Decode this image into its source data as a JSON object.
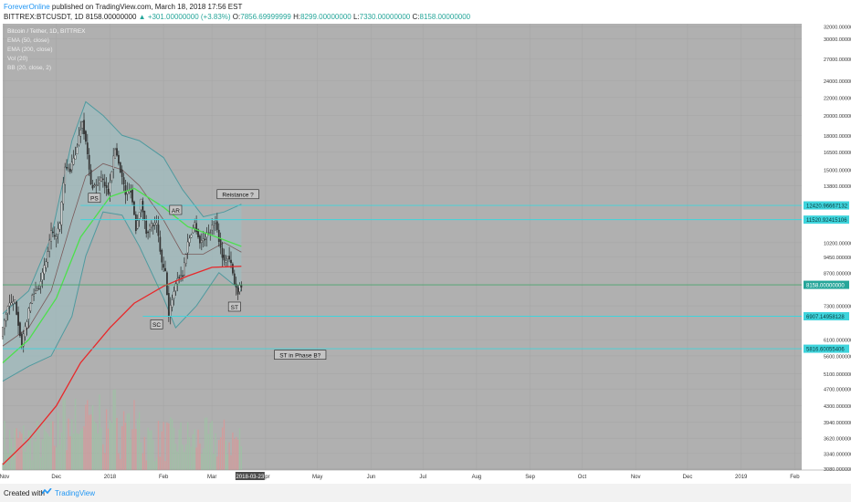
{
  "header": {
    "author": "ForeverOnline",
    "published": "published on TradingView.com, March 18, 2018 17:56 EST",
    "symbol": "BITTREX:BTCUSDT, 1D",
    "last": "8158.00000000",
    "change": "▲ +301.00000000 (+3.83%)",
    "o_label": "O:",
    "o_value": "7856.69999999",
    "h_label": "H:",
    "h_value": "8299.00000000",
    "l_label": "L:",
    "l_value": "7330.00000000",
    "c_label": "C:",
    "c_value": "8158.00000000"
  },
  "legend": {
    "title": "Bitcoin / Tether, 1D, BITTREX",
    "items": [
      "EMA (50, close)",
      "EMA (200, close)",
      "Vol (20)",
      "BB (20, close, 2)"
    ]
  },
  "footer": {
    "created": "Created with",
    "brand": "TradingView"
  },
  "colors": {
    "background": "#ffffff",
    "plot_bg": "#b0b0b0",
    "candle_up": "#f2f2f2",
    "candle_down": "#3a3a3a",
    "ema50": "#4ce04c",
    "ema200": "#e8282a",
    "bb_band": "#4f9a9f",
    "bb_fill": "#9cc0c3",
    "bb_mid": "#7a5a5a",
    "level_line": "#3fd4dc",
    "price_badge": "#3fd4dc",
    "last_badge": "#26a69a",
    "vol_up": "#9fc2a4",
    "vol_down": "#d89999",
    "author": "#2196f3"
  },
  "chart_data": {
    "type": "candlestick",
    "y_scale": "log",
    "ylim": [
      3060,
      32500
    ],
    "x_start": "2017-10-31",
    "x_end": "2019-02-05",
    "y_ticks": [
      {
        "value": 32000,
        "label": "32000.00000000"
      },
      {
        "value": 30000,
        "label": "30000.00000000"
      },
      {
        "value": 27000,
        "label": "27000.00000000"
      },
      {
        "value": 24000,
        "label": "24000.00000000"
      },
      {
        "value": 22000,
        "label": "22000.00000000"
      },
      {
        "value": 20000,
        "label": "20000.00000000"
      },
      {
        "value": 18000,
        "label": "18000.00000000"
      },
      {
        "value": 16500,
        "label": "16500.00000000"
      },
      {
        "value": 15000,
        "label": "15000.00000000"
      },
      {
        "value": 13800,
        "label": "13800.00000000"
      },
      {
        "value": 10200,
        "label": "10200.00000000"
      },
      {
        "value": 9450,
        "label": "9450.00000000"
      },
      {
        "value": 8700,
        "label": "8700.00000000"
      },
      {
        "value": 7300,
        "label": "7300.00000000"
      },
      {
        "value": 6100,
        "label": "6100.00000000"
      },
      {
        "value": 5600,
        "label": "5600.00000000"
      },
      {
        "value": 5100,
        "label": "5100.00000000"
      },
      {
        "value": 4700,
        "label": "4700.00000000"
      },
      {
        "value": 4300,
        "label": "4300.00000000"
      },
      {
        "value": 3940,
        "label": "3940.00000000"
      },
      {
        "value": 3620,
        "label": "3620.00000000"
      },
      {
        "value": 3340,
        "label": "3340.00000000"
      },
      {
        "value": 3080,
        "label": "3080.00000000"
      }
    ],
    "x_ticks": [
      {
        "date": "2017-11-01",
        "label": "Nov"
      },
      {
        "date": "2017-12-01",
        "label": "Dec"
      },
      {
        "date": "2018-01-01",
        "label": "2018"
      },
      {
        "date": "2018-02-01",
        "label": "Feb"
      },
      {
        "date": "2018-03-01",
        "label": "Mar"
      },
      {
        "date": "2018-04-01",
        "label": "Apr"
      },
      {
        "date": "2018-05-01",
        "label": "May"
      },
      {
        "date": "2018-06-01",
        "label": "Jun"
      },
      {
        "date": "2018-07-01",
        "label": "Jul"
      },
      {
        "date": "2018-08-01",
        "label": "Aug"
      },
      {
        "date": "2018-09-01",
        "label": "Sep"
      },
      {
        "date": "2018-10-01",
        "label": "Oct"
      },
      {
        "date": "2018-11-01",
        "label": "Nov"
      },
      {
        "date": "2018-12-01",
        "label": "Dec"
      },
      {
        "date": "2019-01-01",
        "label": "2019"
      },
      {
        "date": "2019-02-01",
        "label": "Feb"
      }
    ],
    "cursor_date": {
      "date": "2018-03-23",
      "label": "2018-03-23"
    },
    "levels": [
      {
        "value": 12420.96667132,
        "label": "12420.96667132",
        "start": "2017-12-15"
      },
      {
        "value": 11520.92415106,
        "label": "11520.92415106",
        "start": "2017-12-15"
      },
      {
        "value": 6907.14958128,
        "label": "6907.14958128",
        "start": "2018-01-20"
      },
      {
        "value": 5816.60055406,
        "label": "5816.60055406",
        "start": "2017-10-31"
      }
    ],
    "last_price": {
      "value": 8158,
      "label": "8158.00000000"
    },
    "annotations": [
      {
        "text": "PS",
        "date": "2017-12-23",
        "value": 12900
      },
      {
        "text": "AR",
        "date": "2018-02-08",
        "value": 12100
      },
      {
        "text": "SC",
        "date": "2018-01-28",
        "value": 6600
      },
      {
        "text": "ST",
        "date": "2018-03-14",
        "value": 7250
      },
      {
        "text": "Reistance ?",
        "date": "2018-03-16",
        "value": 13150
      },
      {
        "text": "ST in Phase B?",
        "date": "2018-04-21",
        "value": 5620
      }
    ],
    "price_path": [
      {
        "date": "2017-10-31",
        "value": 6200
      },
      {
        "date": "2017-11-04",
        "value": 7300
      },
      {
        "date": "2017-11-08",
        "value": 7450
      },
      {
        "date": "2017-11-12",
        "value": 5900
      },
      {
        "date": "2017-11-14",
        "value": 6500
      },
      {
        "date": "2017-11-18",
        "value": 7700
      },
      {
        "date": "2017-11-22",
        "value": 8100
      },
      {
        "date": "2017-11-26",
        "value": 9200
      },
      {
        "date": "2017-11-29",
        "value": 10800
      },
      {
        "date": "2017-12-01",
        "value": 10400
      },
      {
        "date": "2017-12-04",
        "value": 11200
      },
      {
        "date": "2017-12-07",
        "value": 15200
      },
      {
        "date": "2017-12-10",
        "value": 15000
      },
      {
        "date": "2017-12-13",
        "value": 16300
      },
      {
        "date": "2017-12-17",
        "value": 19500
      },
      {
        "date": "2017-12-20",
        "value": 16200
      },
      {
        "date": "2017-12-22",
        "value": 13800
      },
      {
        "date": "2017-12-25",
        "value": 13800
      },
      {
        "date": "2017-12-28",
        "value": 14300
      },
      {
        "date": "2018-01-01",
        "value": 13300
      },
      {
        "date": "2018-01-05",
        "value": 16800
      },
      {
        "date": "2018-01-08",
        "value": 15000
      },
      {
        "date": "2018-01-11",
        "value": 13200
      },
      {
        "date": "2018-01-14",
        "value": 13500
      },
      {
        "date": "2018-01-17",
        "value": 11000
      },
      {
        "date": "2018-01-20",
        "value": 12700
      },
      {
        "date": "2018-01-23",
        "value": 10800
      },
      {
        "date": "2018-01-26",
        "value": 11200
      },
      {
        "date": "2018-01-29",
        "value": 11200
      },
      {
        "date": "2018-02-01",
        "value": 9100
      },
      {
        "date": "2018-02-03",
        "value": 8700
      },
      {
        "date": "2018-02-05",
        "value": 6900
      },
      {
        "date": "2018-02-07",
        "value": 7600
      },
      {
        "date": "2018-02-10",
        "value": 8500
      },
      {
        "date": "2018-02-13",
        "value": 8600
      },
      {
        "date": "2018-02-16",
        "value": 10200
      },
      {
        "date": "2018-02-20",
        "value": 11300
      },
      {
        "date": "2018-02-23",
        "value": 10200
      },
      {
        "date": "2018-02-26",
        "value": 10500
      },
      {
        "date": "2018-03-01",
        "value": 10900
      },
      {
        "date": "2018-03-04",
        "value": 11400
      },
      {
        "date": "2018-03-07",
        "value": 9900
      },
      {
        "date": "2018-03-09",
        "value": 9200
      },
      {
        "date": "2018-03-11",
        "value": 9500
      },
      {
        "date": "2018-03-13",
        "value": 9100
      },
      {
        "date": "2018-03-15",
        "value": 8200
      },
      {
        "date": "2018-03-17",
        "value": 7860
      },
      {
        "date": "2018-03-18",
        "value": 8158
      }
    ],
    "ema50": [
      {
        "date": "2017-10-31",
        "value": 5400
      },
      {
        "date": "2017-11-15",
        "value": 6100
      },
      {
        "date": "2017-12-01",
        "value": 7600
      },
      {
        "date": "2017-12-15",
        "value": 10500
      },
      {
        "date": "2018-01-01",
        "value": 13000
      },
      {
        "date": "2018-01-15",
        "value": 13600
      },
      {
        "date": "2018-02-01",
        "value": 12300
      },
      {
        "date": "2018-02-15",
        "value": 11100
      },
      {
        "date": "2018-03-01",
        "value": 10600
      },
      {
        "date": "2018-03-18",
        "value": 10000
      }
    ],
    "ema200": [
      {
        "date": "2017-10-31",
        "value": 3150
      },
      {
        "date": "2017-11-15",
        "value": 3600
      },
      {
        "date": "2017-12-01",
        "value": 4300
      },
      {
        "date": "2017-12-15",
        "value": 5400
      },
      {
        "date": "2018-01-01",
        "value": 6500
      },
      {
        "date": "2018-01-15",
        "value": 7400
      },
      {
        "date": "2018-02-01",
        "value": 8100
      },
      {
        "date": "2018-02-15",
        "value": 8550
      },
      {
        "date": "2018-03-01",
        "value": 8950
      },
      {
        "date": "2018-03-18",
        "value": 9000
      }
    ],
    "bollinger": {
      "upper": [
        {
          "date": "2017-10-31",
          "value": 7000
        },
        {
          "date": "2017-11-15",
          "value": 7900
        },
        {
          "date": "2017-11-28",
          "value": 10500
        },
        {
          "date": "2017-12-10",
          "value": 17500
        },
        {
          "date": "2017-12-18",
          "value": 21500
        },
        {
          "date": "2017-12-28",
          "value": 20000
        },
        {
          "date": "2018-01-08",
          "value": 18000
        },
        {
          "date": "2018-01-18",
          "value": 17500
        },
        {
          "date": "2018-02-01",
          "value": 16000
        },
        {
          "date": "2018-02-12",
          "value": 13500
        },
        {
          "date": "2018-02-24",
          "value": 11700
        },
        {
          "date": "2018-03-08",
          "value": 12000
        },
        {
          "date": "2018-03-18",
          "value": 12500
        }
      ],
      "lower": [
        {
          "date": "2017-10-31",
          "value": 4900
        },
        {
          "date": "2017-11-15",
          "value": 5300
        },
        {
          "date": "2017-11-28",
          "value": 5600
        },
        {
          "date": "2017-12-10",
          "value": 6900
        },
        {
          "date": "2017-12-18",
          "value": 9500
        },
        {
          "date": "2017-12-28",
          "value": 12000
        },
        {
          "date": "2018-01-08",
          "value": 11800
        },
        {
          "date": "2018-01-18",
          "value": 10000
        },
        {
          "date": "2018-02-01",
          "value": 7600
        },
        {
          "date": "2018-02-08",
          "value": 6500
        },
        {
          "date": "2018-02-20",
          "value": 7300
        },
        {
          "date": "2018-03-05",
          "value": 8700
        },
        {
          "date": "2018-03-18",
          "value": 7900
        }
      ],
      "basis": [
        {
          "date": "2017-10-31",
          "value": 5900
        },
        {
          "date": "2017-11-15",
          "value": 6500
        },
        {
          "date": "2017-11-28",
          "value": 7900
        },
        {
          "date": "2017-12-10",
          "value": 11500
        },
        {
          "date": "2017-12-18",
          "value": 14500
        },
        {
          "date": "2017-12-28",
          "value": 15500
        },
        {
          "date": "2018-01-08",
          "value": 15000
        },
        {
          "date": "2018-01-18",
          "value": 13800
        },
        {
          "date": "2018-02-01",
          "value": 11500
        },
        {
          "date": "2018-02-12",
          "value": 9600
        },
        {
          "date": "2018-02-24",
          "value": 9600
        },
        {
          "date": "2018-03-08",
          "value": 10200
        },
        {
          "date": "2018-03-18",
          "value": 9700
        }
      ]
    }
  }
}
